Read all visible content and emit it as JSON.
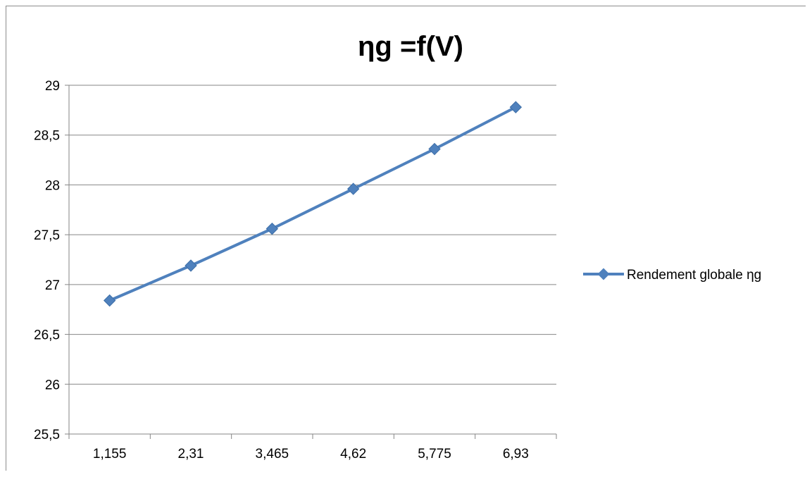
{
  "chart_data": {
    "type": "line",
    "title": "ηg =f(V)",
    "xlabel": "",
    "ylabel": "",
    "categories": [
      "1,155",
      "2,31",
      "3,465",
      "4,62",
      "5,775",
      "6,93"
    ],
    "series": [
      {
        "name": "Rendement globale ηg",
        "values": [
          26.84,
          27.19,
          27.56,
          27.96,
          28.36,
          28.78
        ]
      }
    ],
    "ylim": [
      25.5,
      29
    ],
    "yticks": [
      "25,5",
      "26",
      "26,5",
      "27",
      "27,5",
      "28",
      "28,5",
      "29"
    ],
    "grid": "horizontal",
    "legend_position": "right",
    "colors": {
      "series": "#4f81bd",
      "grid": "#868686",
      "axis": "#868686"
    }
  }
}
